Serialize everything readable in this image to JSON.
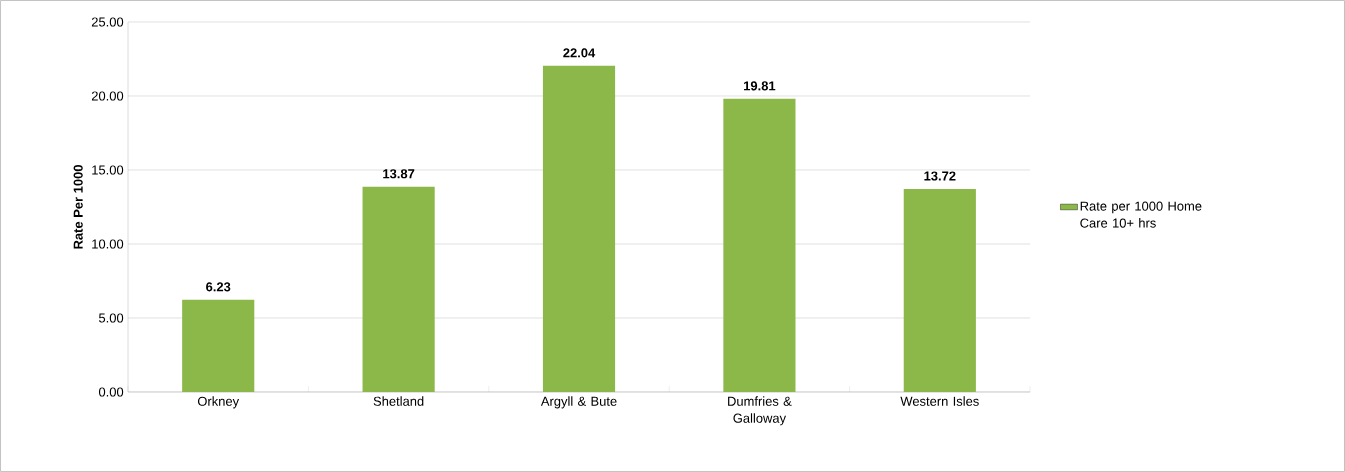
{
  "chart_data": {
    "type": "bar",
    "ylabel": "Rate Per 1000",
    "categories": [
      "Orkney",
      "Shetland",
      "Argyll & Bute",
      "Dumfries & Galloway",
      "Western Isles"
    ],
    "series": [
      {
        "name": "Rate per 1000 Home Care 10+ hrs",
        "color": "#8cb84a",
        "values": [
          6.23,
          13.87,
          22.04,
          19.81,
          13.72
        ]
      }
    ],
    "ylim": [
      0,
      25
    ],
    "yticks": [
      {
        "value": 0,
        "label": "0.00"
      },
      {
        "value": 5,
        "label": "5.00"
      },
      {
        "value": 10,
        "label": "10.00"
      },
      {
        "value": 15,
        "label": "15.00"
      },
      {
        "value": 20,
        "label": "20.00"
      },
      {
        "value": 25,
        "label": "25.00"
      }
    ],
    "grid": "y",
    "legend": "right",
    "data_labels": true
  }
}
